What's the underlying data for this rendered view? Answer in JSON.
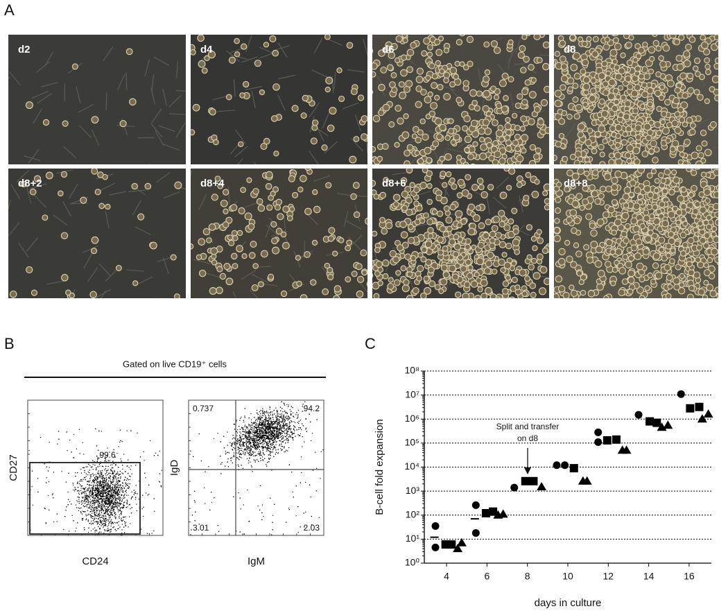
{
  "panel_labels": [
    "A",
    "B",
    "C"
  ],
  "images": [
    "d2",
    "d4",
    "d6",
    "d8",
    "d8+2",
    "d8+4",
    "d8+6",
    "d8+8"
  ],
  "flow": {
    "title": "Gated on live CD19⁺ cells",
    "plots": [
      {
        "x_label": "CD24",
        "y_label": "CD27",
        "gates": [
          99.6
        ]
      },
      {
        "x_label": "IgM",
        "y_label": "IgD",
        "gates": [
          0.737,
          94.2,
          3.01,
          2.03
        ]
      }
    ]
  },
  "chart_data": {
    "type": "scatter",
    "x_label": "days in culture",
    "y_label": "B-cell fold expansion",
    "annotation": [
      "Split and transfer",
      "on d8"
    ],
    "xlim": [
      2.9,
      17.1
    ],
    "xticks": [
      4,
      6,
      8,
      10,
      12,
      14,
      16
    ],
    "ylim": [
      1,
      100000000
    ],
    "yscale": "log",
    "grid": true,
    "yticks": [
      {
        "value": 1,
        "label": "10⁰"
      },
      {
        "value": 10,
        "label": "10¹"
      },
      {
        "value": 100,
        "label": "10²"
      },
      {
        "value": 1000,
        "label": "10³"
      },
      {
        "value": 10000,
        "label": "10⁴"
      },
      {
        "value": 100000,
        "label": "10⁵"
      },
      {
        "value": 1000000,
        "label": "10⁶"
      },
      {
        "value": 10000000,
        "label": "10⁷"
      },
      {
        "value": 100000000,
        "label": "10⁸"
      }
    ],
    "series": [
      {
        "marker": "circle",
        "color": "#000000",
        "x": [
          3.45,
          3.45,
          5.45,
          5.45,
          7.35,
          9.45,
          9.85,
          11.5,
          11.5,
          13.5,
          15.6
        ],
        "values": [
          35,
          4.5,
          260,
          18,
          1400,
          12000,
          12000,
          280000,
          110000,
          1500000,
          11000000
        ]
      },
      {
        "marker": "square",
        "color": "#000000",
        "x": [
          3.95,
          4.25,
          5.95,
          6.3,
          7.9,
          8.3,
          10.3,
          11.95,
          12.4,
          14.05,
          14.4,
          16.05,
          16.5
        ],
        "values": [
          6,
          6,
          120,
          140,
          2600,
          2600,
          9000,
          130000,
          140000,
          800000,
          700000,
          2800000,
          3200000
        ]
      },
      {
        "marker": "triangle",
        "color": "#000000",
        "x": [
          4.55,
          4.75,
          6.55,
          6.8,
          8.7,
          10.75,
          10.95,
          12.7,
          12.9,
          14.65,
          14.95,
          16.65,
          16.95
        ],
        "values": [
          4,
          7,
          100,
          110,
          1500,
          2600,
          2600,
          50000,
          50000,
          450000,
          550000,
          1000000,
          1600000
        ]
      },
      {
        "marker": "dash",
        "color": "#000000",
        "x": [
          3.4,
          5.4
        ],
        "values": [
          12,
          70
        ]
      }
    ]
  }
}
